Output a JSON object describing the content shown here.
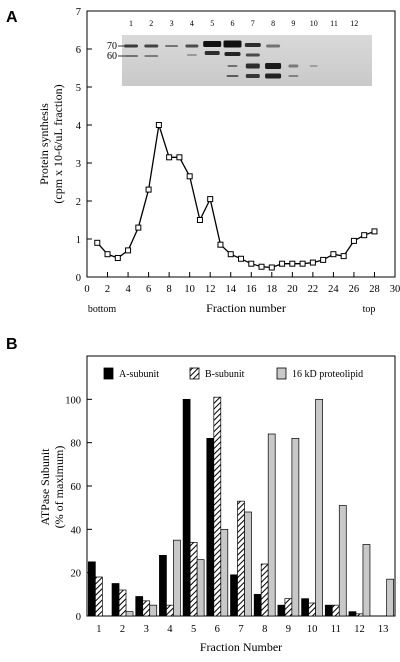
{
  "chart_data": [
    {
      "panel": "A",
      "type": "line",
      "xlabel": "Fraction number",
      "ylabel": "Protein synthesis (cpm x 10-6/uL fraction)",
      "xlim": [
        0,
        30
      ],
      "ylim": [
        0,
        7
      ],
      "xticks": [
        0,
        2,
        4,
        6,
        8,
        10,
        12,
        14,
        16,
        18,
        20,
        22,
        24,
        26,
        28,
        30
      ],
      "yticks": [
        0,
        1,
        2,
        3,
        4,
        5,
        6,
        7
      ],
      "x_annotations": [
        "bottom",
        "top"
      ],
      "marker": "open-square",
      "grid": false,
      "x": [
        1,
        2,
        3,
        4,
        5,
        6,
        7,
        8,
        9,
        10,
        11,
        12,
        13,
        14,
        15,
        16,
        17,
        18,
        19,
        20,
        21,
        22,
        23,
        24,
        25,
        26,
        27,
        28
      ],
      "values": [
        0.9,
        0.6,
        0.5,
        0.7,
        1.3,
        2.3,
        4.0,
        3.15,
        3.15,
        2.65,
        1.5,
        2.05,
        0.85,
        0.6,
        0.48,
        0.35,
        0.27,
        0.25,
        0.35,
        0.35,
        0.35,
        0.38,
        0.45,
        0.6,
        0.55,
        0.95,
        1.1,
        1.2
      ],
      "inset": {
        "description_type": "gel",
        "lane_numbers": [
          "1",
          "2",
          "3",
          "4",
          "5",
          "6",
          "7",
          "8",
          "9",
          "10",
          "11",
          "12"
        ],
        "markers": [
          "70",
          "60"
        ]
      }
    },
    {
      "panel": "B",
      "type": "bar",
      "xlabel": "Fraction Number",
      "ylabel": "ATPase Subunit (% of maximum)",
      "ylim": [
        0,
        120
      ],
      "yticks": [
        0,
        20,
        40,
        60,
        80,
        100
      ],
      "grid": false,
      "legend_position": "top",
      "categories": [
        "1",
        "2",
        "3",
        "4",
        "5",
        "6",
        "7",
        "8",
        "9",
        "10",
        "11",
        "12",
        "13"
      ],
      "series": [
        {
          "name": "A-subunit",
          "fill": "solid",
          "color": "#000000",
          "values": [
            25,
            15,
            9,
            28,
            100,
            82,
            19,
            10,
            5,
            8,
            5,
            2,
            0
          ]
        },
        {
          "name": "B-subunit",
          "fill": "hatched",
          "color": "#000000",
          "values": [
            18,
            12,
            7,
            5,
            34,
            101,
            53,
            24,
            8,
            6,
            5,
            1,
            0
          ]
        },
        {
          "name": "16 kD proteolipid",
          "fill": "light-gray",
          "color": "#c8c8c8",
          "values": [
            0,
            2,
            5,
            35,
            26,
            40,
            48,
            84,
            82,
            100,
            51,
            33,
            17
          ]
        }
      ]
    }
  ]
}
